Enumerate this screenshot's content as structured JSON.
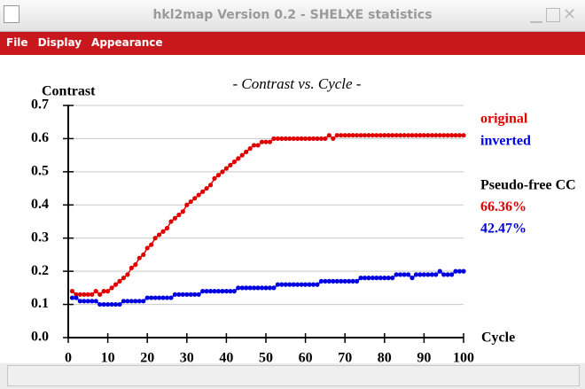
{
  "window": {
    "title": "hkl2map Version 0.2 - SHELXE statistics",
    "menu": [
      "File",
      "Display",
      "Appearance"
    ]
  },
  "chart_data": {
    "type": "line",
    "title": "- Contrast vs. Cycle -",
    "ylabel": "Contrast",
    "xlabel": "Cycle",
    "x": [
      1,
      2,
      3,
      4,
      5,
      6,
      7,
      8,
      9,
      10,
      11,
      12,
      13,
      14,
      15,
      16,
      17,
      18,
      19,
      20,
      21,
      22,
      23,
      24,
      25,
      26,
      27,
      28,
      29,
      30,
      31,
      32,
      33,
      34,
      35,
      36,
      37,
      38,
      39,
      40,
      41,
      42,
      43,
      44,
      45,
      46,
      47,
      48,
      49,
      50,
      51,
      52,
      53,
      54,
      55,
      56,
      57,
      58,
      59,
      60,
      61,
      62,
      63,
      64,
      65,
      66,
      67,
      68,
      69,
      70,
      71,
      72,
      73,
      74,
      75,
      76,
      77,
      78,
      79,
      80,
      81,
      82,
      83,
      84,
      85,
      86,
      87,
      88,
      89,
      90,
      91,
      92,
      93,
      94,
      95,
      96,
      97,
      98,
      99,
      100
    ],
    "series": [
      {
        "name": "original",
        "color": "#e00000",
        "values": [
          0.14,
          0.13,
          0.13,
          0.13,
          0.13,
          0.13,
          0.14,
          0.13,
          0.14,
          0.14,
          0.15,
          0.16,
          0.17,
          0.18,
          0.19,
          0.21,
          0.22,
          0.24,
          0.25,
          0.27,
          0.28,
          0.3,
          0.31,
          0.32,
          0.33,
          0.35,
          0.36,
          0.37,
          0.38,
          0.4,
          0.41,
          0.42,
          0.43,
          0.44,
          0.45,
          0.46,
          0.48,
          0.49,
          0.5,
          0.51,
          0.52,
          0.53,
          0.54,
          0.55,
          0.56,
          0.57,
          0.58,
          0.58,
          0.59,
          0.59,
          0.59,
          0.6,
          0.6,
          0.6,
          0.6,
          0.6,
          0.6,
          0.6,
          0.6,
          0.6,
          0.6,
          0.6,
          0.6,
          0.6,
          0.6,
          0.61,
          0.6,
          0.61,
          0.61,
          0.61,
          0.61,
          0.61,
          0.61,
          0.61,
          0.61,
          0.61,
          0.61,
          0.61,
          0.61,
          0.61,
          0.61,
          0.61,
          0.61,
          0.61,
          0.61,
          0.61,
          0.61,
          0.61,
          0.61,
          0.61,
          0.61,
          0.61,
          0.61,
          0.61,
          0.61,
          0.61,
          0.61,
          0.61,
          0.61,
          0.61
        ]
      },
      {
        "name": "inverted",
        "color": "#0000e0",
        "values": [
          0.12,
          0.12,
          0.11,
          0.11,
          0.11,
          0.11,
          0.11,
          0.1,
          0.1,
          0.1,
          0.1,
          0.1,
          0.1,
          0.11,
          0.11,
          0.11,
          0.11,
          0.11,
          0.11,
          0.12,
          0.12,
          0.12,
          0.12,
          0.12,
          0.12,
          0.12,
          0.13,
          0.13,
          0.13,
          0.13,
          0.13,
          0.13,
          0.13,
          0.14,
          0.14,
          0.14,
          0.14,
          0.14,
          0.14,
          0.14,
          0.14,
          0.14,
          0.15,
          0.15,
          0.15,
          0.15,
          0.15,
          0.15,
          0.15,
          0.15,
          0.15,
          0.15,
          0.16,
          0.16,
          0.16,
          0.16,
          0.16,
          0.16,
          0.16,
          0.16,
          0.16,
          0.16,
          0.16,
          0.17,
          0.17,
          0.17,
          0.17,
          0.17,
          0.17,
          0.17,
          0.17,
          0.17,
          0.17,
          0.18,
          0.18,
          0.18,
          0.18,
          0.18,
          0.18,
          0.18,
          0.18,
          0.18,
          0.19,
          0.19,
          0.19,
          0.19,
          0.18,
          0.19,
          0.19,
          0.19,
          0.19,
          0.19,
          0.19,
          0.2,
          0.19,
          0.19,
          0.19,
          0.2,
          0.2,
          0.2
        ]
      }
    ],
    "annotations": [
      {
        "text": "Pseudo-free CC",
        "color": "#000000"
      },
      {
        "text": "66.36%",
        "color": "#e00000"
      },
      {
        "text": "42.47%",
        "color": "#0000e0"
      }
    ],
    "xlim": [
      0,
      100
    ],
    "xticks": [
      0,
      10,
      20,
      30,
      40,
      50,
      60,
      70,
      80,
      90,
      100
    ],
    "ylim": [
      0,
      0.7
    ],
    "yticks": [
      {
        "value": 0,
        "label": "0.0"
      },
      0.1,
      0.2,
      0.3,
      0.4,
      0.5,
      0.6,
      0.7
    ],
    "grid": true
  }
}
